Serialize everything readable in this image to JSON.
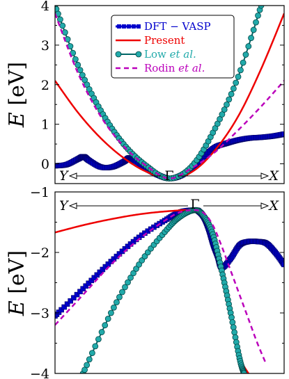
{
  "chart_data": [
    {
      "type": "line",
      "panel": "conduction-band",
      "ylabel": "E [eV]",
      "ylim": [
        -0.5,
        4
      ],
      "yticks": [
        "4",
        "3",
        "2",
        "1",
        "0"
      ],
      "direction_labels": {
        "left": "Y",
        "center": "Γ",
        "right": "X"
      },
      "x_axis": "k-path from Y (-1) through Γ (0) to X (+1)",
      "legend": {
        "placement": "top-center",
        "entries": [
          {
            "text": "DFT − VASP",
            "italic_suffix": ""
          },
          {
            "text": "Present",
            "italic_suffix": ""
          },
          {
            "text": "Low ",
            "italic_suffix": "et al."
          },
          {
            "text": "Rodin ",
            "italic_suffix": "et al."
          }
        ]
      },
      "series": [
        {
          "name": "DFT − VASP",
          "color": "#0000cc",
          "marker": "square",
          "x": [
            -1,
            -0.9,
            -0.8,
            -0.75,
            -0.7,
            -0.6,
            -0.5,
            -0.4,
            -0.35,
            -0.3,
            -0.2,
            -0.1,
            0,
            0.1,
            0.2,
            0.3,
            0.4,
            0.5,
            0.6,
            0.7,
            0.8,
            0.9,
            1
          ],
          "y": [
            -0.05,
            -0.02,
            0.12,
            0.18,
            0.08,
            -0.08,
            -0.08,
            0.05,
            0.15,
            0.08,
            -0.12,
            -0.28,
            -0.37,
            -0.3,
            -0.1,
            0.18,
            0.42,
            0.52,
            0.6,
            0.65,
            0.67,
            0.7,
            0.75
          ]
        },
        {
          "name": "Present",
          "color": "#ee0000",
          "marker": "none",
          "x": [
            -1,
            -0.8,
            -0.6,
            -0.4,
            -0.2,
            0,
            0.2,
            0.4,
            0.6,
            0.8,
            1
          ],
          "y": [
            2.1,
            1.3,
            0.65,
            0.15,
            -0.2,
            -0.37,
            -0.2,
            0.35,
            1.2,
            2.4,
            3.8
          ]
        },
        {
          "name": "Low et al.",
          "color": "#22aaaa",
          "marker": "circle",
          "x": [
            -1,
            -0.8,
            -0.6,
            -0.4,
            -0.2,
            0,
            0.2,
            0.4,
            0.6,
            0.8
          ],
          "y": [
            4.0,
            2.5,
            1.35,
            0.5,
            -0.05,
            -0.37,
            -0.05,
            0.9,
            2.2,
            4.0
          ]
        },
        {
          "name": "Rodin et al.",
          "color": "#bb00bb",
          "marker": "dashed",
          "x": [
            -1,
            -0.8,
            -0.6,
            -0.4,
            -0.2,
            0,
            0.2,
            0.4,
            0.6,
            0.8,
            1
          ],
          "y": [
            3.8,
            2.3,
            1.2,
            0.45,
            -0.05,
            -0.37,
            -0.1,
            0.3,
            0.85,
            1.45,
            2.1
          ]
        }
      ]
    },
    {
      "type": "line",
      "panel": "valence-band",
      "ylabel": "E [eV]",
      "ylim": [
        -4,
        -1
      ],
      "yticks": [
        "−1",
        "−2",
        "−3",
        "−4"
      ],
      "direction_labels": {
        "left": "Y",
        "center": "Γ",
        "right": "X"
      },
      "series": [
        {
          "name": "DFT − VASP",
          "color": "#0000cc",
          "marker": "square",
          "x": [
            -1,
            -0.8,
            -0.6,
            -0.4,
            -0.2,
            -0.1,
            0,
            0.05,
            0.1,
            0.15,
            0.2,
            0.25,
            0.3,
            0.4,
            0.5,
            0.6,
            0.7,
            0.8,
            0.9,
            1
          ],
          "y": [
            -3.05,
            -2.6,
            -2.15,
            -1.75,
            -1.45,
            -1.33,
            -1.3,
            -1.33,
            -1.42,
            -1.6,
            -1.85,
            -2.05,
            -2.25,
            -2.1,
            -1.88,
            -1.82,
            -1.82,
            -1.85,
            -2.0,
            -2.2
          ]
        },
        {
          "name": "Present",
          "color": "#ee0000",
          "marker": "none",
          "x": [
            -1,
            -0.8,
            -0.6,
            -0.4,
            -0.2,
            0,
            0.1,
            0.2,
            0.3,
            0.4,
            0.5,
            0.6
          ],
          "y": [
            -1.67,
            -1.55,
            -1.45,
            -1.37,
            -1.32,
            -1.3,
            -1.38,
            -1.65,
            -2.2,
            -2.9,
            -3.7,
            -4.0
          ]
        },
        {
          "name": "Low et al.",
          "color": "#22aaaa",
          "marker": "circle",
          "x": [
            -0.8,
            -0.6,
            -0.4,
            -0.2,
            -0.1,
            0,
            0.1,
            0.2,
            0.3,
            0.4,
            0.5,
            0.55
          ],
          "y": [
            -4.0,
            -3.0,
            -2.2,
            -1.62,
            -1.4,
            -1.3,
            -1.4,
            -1.7,
            -2.3,
            -3.0,
            -3.75,
            -4.0
          ]
        },
        {
          "name": "Rodin et al.",
          "color": "#bb00bb",
          "marker": "dashed",
          "x": [
            -1,
            -0.8,
            -0.6,
            -0.4,
            -0.2,
            -0.1,
            0,
            0.1,
            0.2,
            0.3,
            0.4,
            0.5,
            0.6,
            0.7,
            0.8
          ],
          "y": [
            -3.2,
            -2.7,
            -2.2,
            -1.78,
            -1.45,
            -1.33,
            -1.3,
            -1.35,
            -1.55,
            -1.9,
            -2.3,
            -2.7,
            -3.1,
            -3.5,
            -3.85
          ]
        }
      ]
    }
  ]
}
